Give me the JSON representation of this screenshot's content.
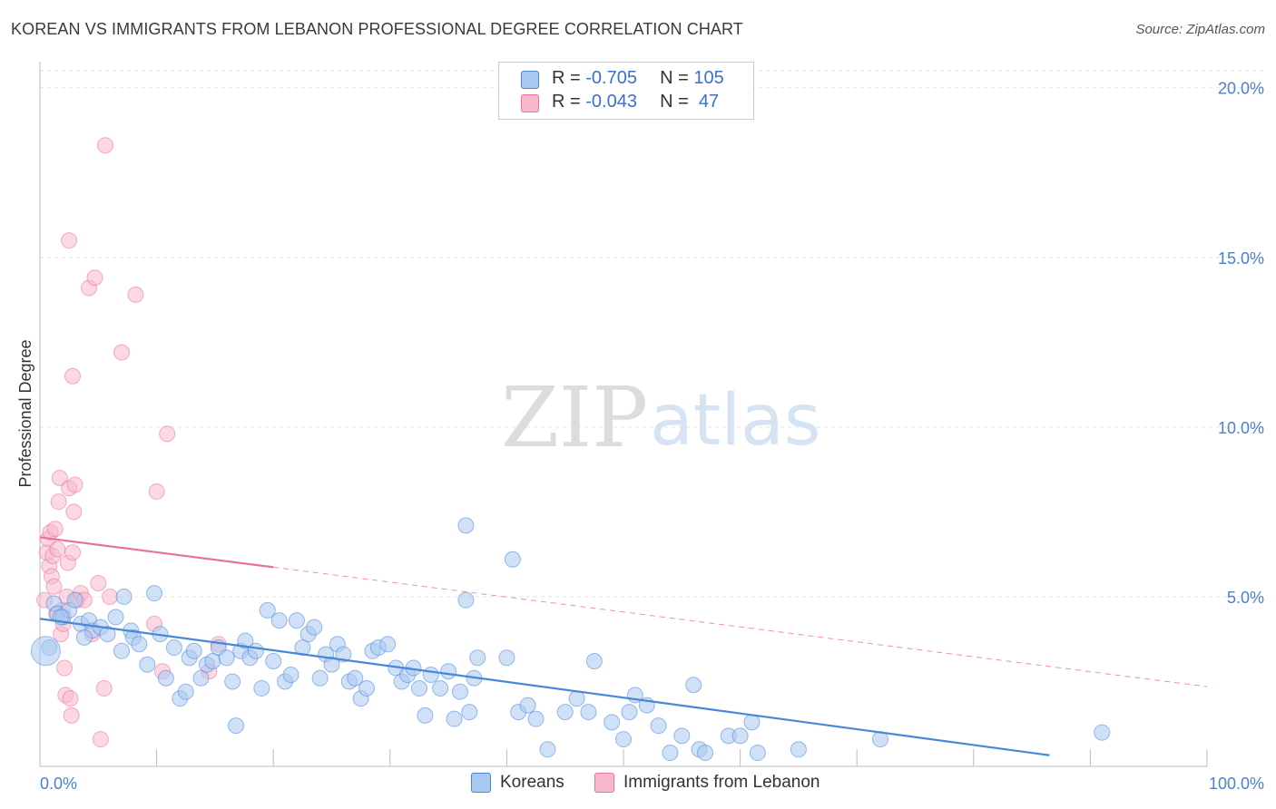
{
  "header": {
    "title": "KOREAN VS IMMIGRANTS FROM LEBANON PROFESSIONAL DEGREE CORRELATION CHART",
    "source": "Source: ZipAtlas.com"
  },
  "legend": {
    "rows": [
      {
        "r_label": "R = ",
        "r_value": "-0.705",
        "n_label": "N = ",
        "n_value": "105",
        "color": "#a9c8f0"
      },
      {
        "r_label": "R = ",
        "r_value": "-0.043",
        "n_label": "N = ",
        "n_value": " 47",
        "color": "#f7b8cb"
      }
    ]
  },
  "bottom_legend": {
    "koreans": "Koreans",
    "lebanon": "Immigrants from Lebanon"
  },
  "watermark": {
    "zip": "ZIP",
    "atlas": "atlas"
  },
  "chart_data": {
    "type": "scatter",
    "title": "KOREAN VS IMMIGRANTS FROM LEBANON PROFESSIONAL DEGREE CORRELATION CHART",
    "xlabel": "",
    "ylabel": "Professional Degree",
    "xlim": [
      0,
      100
    ],
    "ylim": [
      0,
      20.5
    ],
    "x_ticks": [
      "0.0%",
      "100.0%"
    ],
    "y_ticks": [
      "5.0%",
      "10.0%",
      "15.0%",
      "20.0%"
    ],
    "grid": true,
    "legend_position": "top-center",
    "series": [
      {
        "name": "Koreans",
        "color": "#4a86d8",
        "fill": "#a9c8f0",
        "trend": {
          "x": [
            0,
            100
          ],
          "y": [
            4.35,
            -0.3
          ],
          "style": "solid"
        },
        "points": [
          [
            0.8,
            3.5
          ],
          [
            1.2,
            4.8
          ],
          [
            1.5,
            4.5
          ],
          [
            2.0,
            4.4
          ],
          [
            2.5,
            4.6
          ],
          [
            3.0,
            4.9
          ],
          [
            3.5,
            4.2
          ],
          [
            4.2,
            4.3
          ],
          [
            4.5,
            4.0
          ],
          [
            5.2,
            4.1
          ],
          [
            5.8,
            3.9
          ],
          [
            6.5,
            4.4
          ],
          [
            7.0,
            3.4
          ],
          [
            7.2,
            5.0
          ],
          [
            7.8,
            4.0
          ],
          [
            8.0,
            3.8
          ],
          [
            8.5,
            3.6
          ],
          [
            9.2,
            3.0
          ],
          [
            9.8,
            5.1
          ],
          [
            10.3,
            3.9
          ],
          [
            10.8,
            2.6
          ],
          [
            11.5,
            3.5
          ],
          [
            12.0,
            2.0
          ],
          [
            12.5,
            2.2
          ],
          [
            12.8,
            3.2
          ],
          [
            13.2,
            3.4
          ],
          [
            13.8,
            2.6
          ],
          [
            14.3,
            3.0
          ],
          [
            14.8,
            3.1
          ],
          [
            15.3,
            3.5
          ],
          [
            16.0,
            3.2
          ],
          [
            16.5,
            2.5
          ],
          [
            16.8,
            1.2
          ],
          [
            17.2,
            3.4
          ],
          [
            17.6,
            3.7
          ],
          [
            18.0,
            3.2
          ],
          [
            18.5,
            3.4
          ],
          [
            19.0,
            2.3
          ],
          [
            19.5,
            4.6
          ],
          [
            20.0,
            3.1
          ],
          [
            20.5,
            4.3
          ],
          [
            21.0,
            2.5
          ],
          [
            21.5,
            2.7
          ],
          [
            22.0,
            4.3
          ],
          [
            22.5,
            3.5
          ],
          [
            23.0,
            3.9
          ],
          [
            23.5,
            4.1
          ],
          [
            24.0,
            2.6
          ],
          [
            24.5,
            3.3
          ],
          [
            25.0,
            3.0
          ],
          [
            25.5,
            3.6
          ],
          [
            26.0,
            3.3
          ],
          [
            26.5,
            2.5
          ],
          [
            27.0,
            2.6
          ],
          [
            27.5,
            2.0
          ],
          [
            28.0,
            2.3
          ],
          [
            28.5,
            3.4
          ],
          [
            29.0,
            3.5
          ],
          [
            29.8,
            3.6
          ],
          [
            30.5,
            2.9
          ],
          [
            31.0,
            2.5
          ],
          [
            31.5,
            2.7
          ],
          [
            32.0,
            2.9
          ],
          [
            32.5,
            2.3
          ],
          [
            33.0,
            1.5
          ],
          [
            33.5,
            2.7
          ],
          [
            34.3,
            2.3
          ],
          [
            35.0,
            2.8
          ],
          [
            35.5,
            1.4
          ],
          [
            36.0,
            2.2
          ],
          [
            36.8,
            1.6
          ],
          [
            37.2,
            2.6
          ],
          [
            37.5,
            3.2
          ],
          [
            36.5,
            4.9
          ],
          [
            36.5,
            7.1
          ],
          [
            40.5,
            6.1
          ],
          [
            40.0,
            3.2
          ],
          [
            41.0,
            1.6
          ],
          [
            41.8,
            1.8
          ],
          [
            42.5,
            1.4
          ],
          [
            43.5,
            0.5
          ],
          [
            45.0,
            1.6
          ],
          [
            46.0,
            2.0
          ],
          [
            47.0,
            1.6
          ],
          [
            47.5,
            3.1
          ],
          [
            49.0,
            1.3
          ],
          [
            50.0,
            0.8
          ],
          [
            50.5,
            1.6
          ],
          [
            51.0,
            2.1
          ],
          [
            52.0,
            1.8
          ],
          [
            53.0,
            1.2
          ],
          [
            54.0,
            0.4
          ],
          [
            55.0,
            0.9
          ],
          [
            56.0,
            2.4
          ],
          [
            56.5,
            0.5
          ],
          [
            57.0,
            0.4
          ],
          [
            59.0,
            0.9
          ],
          [
            60.0,
            0.9
          ],
          [
            61.0,
            1.3
          ],
          [
            61.5,
            0.4
          ],
          [
            65.0,
            0.5
          ],
          [
            72.0,
            0.8
          ],
          [
            91.0,
            1.0
          ],
          [
            1.8,
            4.4
          ],
          [
            3.8,
            3.8
          ]
        ]
      },
      {
        "name": "Immigrants from Lebanon",
        "color": "#e8729a",
        "fill": "#f7b8cb",
        "trend": {
          "x": [
            0,
            100
          ],
          "y": [
            6.75,
            2.35
          ],
          "style": "solid-to-dashed",
          "solid_until_x": 20
        },
        "points": [
          [
            0.4,
            4.9
          ],
          [
            0.6,
            6.3
          ],
          [
            0.7,
            6.7
          ],
          [
            0.8,
            5.9
          ],
          [
            0.9,
            6.9
          ],
          [
            1.0,
            5.6
          ],
          [
            1.1,
            6.2
          ],
          [
            1.2,
            5.3
          ],
          [
            1.3,
            7.0
          ],
          [
            1.4,
            4.5
          ],
          [
            1.5,
            6.4
          ],
          [
            1.6,
            7.8
          ],
          [
            1.7,
            8.5
          ],
          [
            1.8,
            3.9
          ],
          [
            1.9,
            4.6
          ],
          [
            2.0,
            4.2
          ],
          [
            2.1,
            2.9
          ],
          [
            2.2,
            2.1
          ],
          [
            2.3,
            5.0
          ],
          [
            2.4,
            6.0
          ],
          [
            2.5,
            8.2
          ],
          [
            2.6,
            2.0
          ],
          [
            2.7,
            1.5
          ],
          [
            2.8,
            6.3
          ],
          [
            2.9,
            7.5
          ],
          [
            3.0,
            8.3
          ],
          [
            3.2,
            4.9
          ],
          [
            2.5,
            15.5
          ],
          [
            2.8,
            11.5
          ],
          [
            3.5,
            5.1
          ],
          [
            3.8,
            4.9
          ],
          [
            4.2,
            14.1
          ],
          [
            4.5,
            3.9
          ],
          [
            4.7,
            14.4
          ],
          [
            5.0,
            5.4
          ],
          [
            5.2,
            0.8
          ],
          [
            5.5,
            2.3
          ],
          [
            6.0,
            5.0
          ],
          [
            5.6,
            18.3
          ],
          [
            7.0,
            12.2
          ],
          [
            8.2,
            13.9
          ],
          [
            9.8,
            4.2
          ],
          [
            10.0,
            8.1
          ],
          [
            10.5,
            2.8
          ],
          [
            10.9,
            9.8
          ],
          [
            14.5,
            2.8
          ],
          [
            15.3,
            3.6
          ]
        ]
      }
    ]
  }
}
